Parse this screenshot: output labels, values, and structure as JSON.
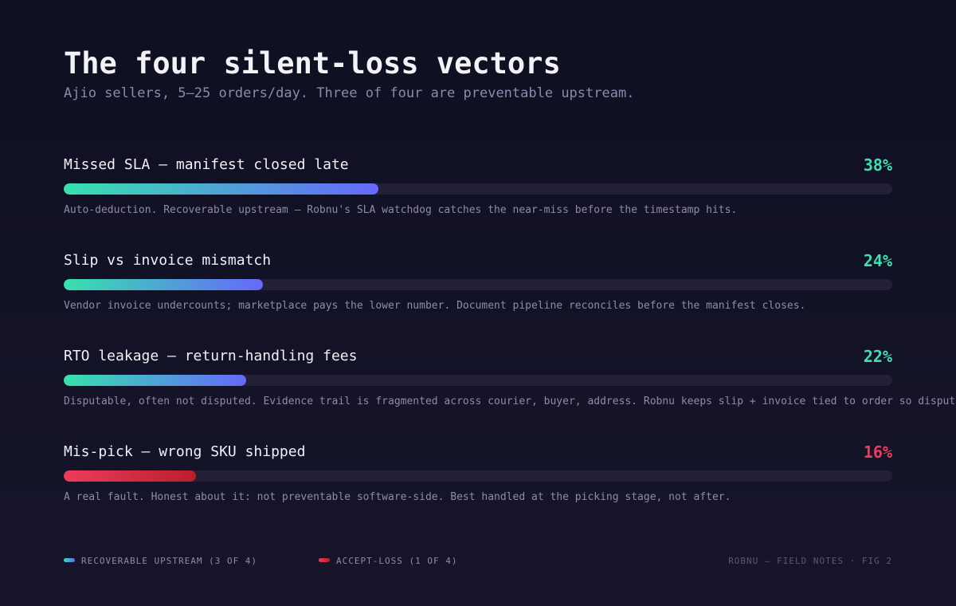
{
  "header": {
    "title": "The four silent-loss vectors",
    "subtitle": "Ajio sellers, 5–25 orders/day. Three of four are preventable upstream."
  },
  "chart_data": {
    "type": "bar",
    "orientation": "horizontal",
    "xlim": [
      0,
      100
    ],
    "categories": [
      "Missed SLA — manifest closed late",
      "Slip vs invoice mismatch",
      "RTO leakage — return-handling fees",
      "Mis-pick — wrong SKU shipped"
    ],
    "values": [
      38,
      24,
      22,
      16
    ],
    "value_labels": [
      "38%",
      "24%",
      "22%",
      "16%"
    ],
    "groups": [
      "recoverable",
      "recoverable",
      "recoverable",
      "accept-loss"
    ],
    "notes": [
      "Auto-deduction. Recoverable upstream — Robnu's SLA watchdog catches the near-miss before the timestamp hits.",
      "Vendor invoice undercounts; marketplace pays the lower number. Document pipeline reconciles before the manifest closes.",
      "Disputable, often not disputed. Evidence trail is fragmented across courier, buyer, address. Robnu keeps slip + invoice tied to order so dispute fi",
      "A real fault. Honest about it: not preventable software-side. Best handled at the picking stage, not after."
    ],
    "legend": [
      {
        "label": "RECOVERABLE UPSTREAM (3 OF 4)",
        "group": "recoverable"
      },
      {
        "label": "ACCEPT-LOSS (1 OF 4)",
        "group": "accept-loss"
      }
    ],
    "legend_position": "bottom-left",
    "grid": false,
    "colors": {
      "recoverable_start": "#36e2ad",
      "recoverable_end": "#6668fb",
      "accept_loss_start": "#ee3b5e",
      "accept_loss_end": "#b91f2a",
      "track": "#221f37"
    }
  },
  "footer": {
    "note": "ROBNU — FIELD NOTES · FIG 2"
  }
}
